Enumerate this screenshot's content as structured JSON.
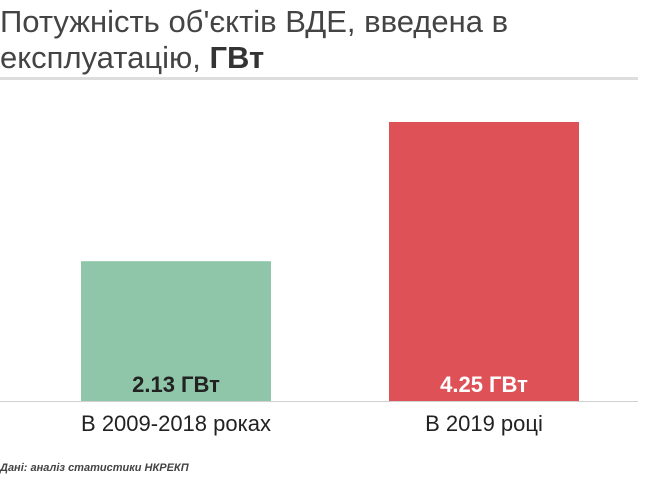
{
  "header": {
    "title": "Потужність об'єктів ВДЕ, введена в експлуатацію, ",
    "title_unit": "ГВт"
  },
  "chart_data": {
    "type": "bar",
    "categories": [
      "В 2009-2018 роках",
      "В 2019 році"
    ],
    "values": [
      2.13,
      4.25
    ],
    "value_labels": [
      "2.13 ГВт",
      "4.25 ГВт"
    ],
    "colors": [
      "#8fc6a9",
      "#de5257"
    ],
    "value_label_colors": [
      "#222222",
      "#ffffff"
    ],
    "xlabel": "",
    "ylabel": "",
    "ylim": [
      0,
      4.25
    ],
    "grid": false,
    "legend": "none"
  },
  "footer": {
    "source": "Дані: аналіз статистики НКРЕКП"
  }
}
